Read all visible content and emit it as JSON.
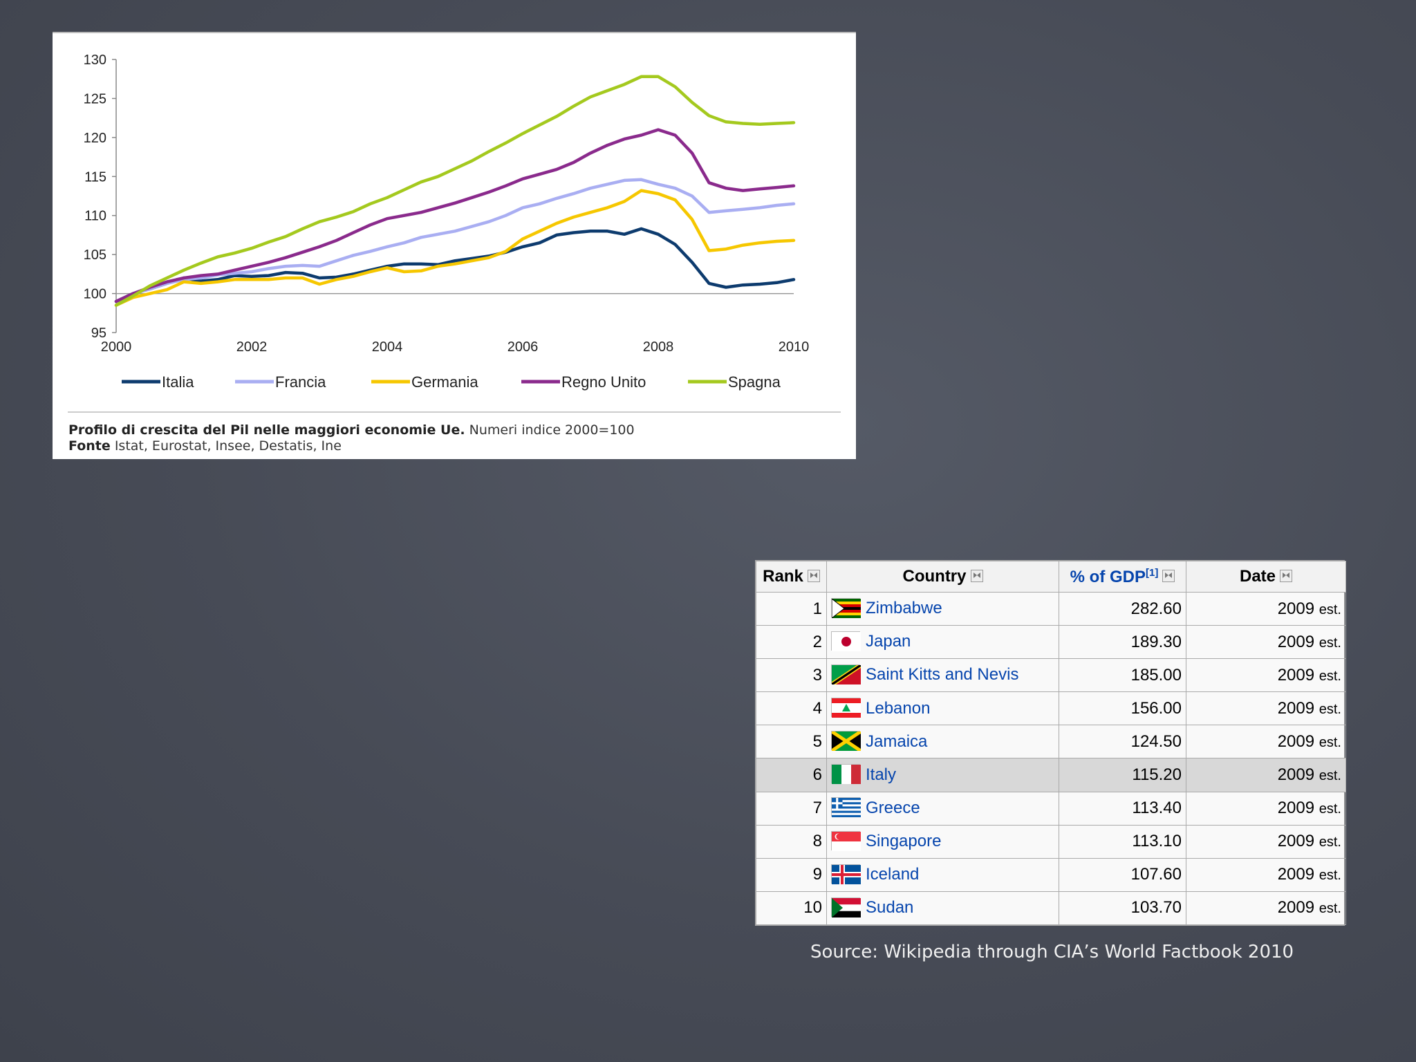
{
  "chart_data": {
    "type": "line",
    "x": [
      2000,
      2000.25,
      2000.5,
      2000.75,
      2001,
      2001.25,
      2001.5,
      2001.75,
      2002,
      2002.25,
      2002.5,
      2002.75,
      2003,
      2003.25,
      2003.5,
      2003.75,
      2004,
      2004.25,
      2004.5,
      2004.75,
      2005,
      2005.25,
      2005.5,
      2005.75,
      2006,
      2006.25,
      2006.5,
      2006.75,
      2007,
      2007.25,
      2007.5,
      2007.75,
      2008,
      2008.25,
      2008.5,
      2008.75,
      2009,
      2009.25,
      2009.5,
      2009.75,
      2010
    ],
    "series": [
      {
        "name": "Italia",
        "color": "#0d3b6e",
        "values": [
          99.0,
          100.0,
          100.6,
          101.3,
          102.0,
          101.6,
          101.8,
          102.3,
          102.2,
          102.3,
          102.7,
          102.6,
          102.0,
          102.1,
          102.5,
          103.0,
          103.5,
          103.8,
          103.8,
          103.7,
          104.2,
          104.5,
          104.8,
          105.3,
          106.0,
          106.5,
          107.5,
          107.8,
          108.0,
          108.0,
          107.6,
          108.3,
          107.6,
          106.3,
          104.0,
          101.3,
          100.8,
          101.1,
          101.2,
          101.4,
          101.8
        ]
      },
      {
        "name": "Francia",
        "color": "#a9aef2",
        "values": [
          99.0,
          100.0,
          100.6,
          101.3,
          101.8,
          102.0,
          102.4,
          102.6,
          102.8,
          103.2,
          103.5,
          103.6,
          103.5,
          104.2,
          104.9,
          105.4,
          106.0,
          106.5,
          107.2,
          107.6,
          108.0,
          108.6,
          109.2,
          110.0,
          111.0,
          111.5,
          112.2,
          112.8,
          113.5,
          114.0,
          114.5,
          114.6,
          114.0,
          113.5,
          112.5,
          110.4,
          110.6,
          110.8,
          111.0,
          111.3,
          111.5
        ]
      },
      {
        "name": "Germania",
        "color": "#f6c700",
        "values": [
          98.5,
          99.5,
          100.0,
          100.5,
          101.5,
          101.3,
          101.5,
          101.8,
          101.8,
          101.8,
          102.0,
          102.0,
          101.2,
          101.8,
          102.2,
          102.8,
          103.3,
          102.8,
          102.9,
          103.5,
          103.8,
          104.2,
          104.6,
          105.4,
          107.0,
          108.0,
          109.0,
          109.8,
          110.4,
          111.0,
          111.8,
          113.2,
          112.8,
          112.0,
          109.5,
          105.5,
          105.7,
          106.2,
          106.5,
          106.7,
          106.8
        ]
      },
      {
        "name": "Regno Unito",
        "color": "#8a2a8c",
        "values": [
          99.0,
          100.0,
          100.8,
          101.5,
          102.0,
          102.3,
          102.5,
          103.0,
          103.5,
          104.0,
          104.6,
          105.3,
          106.0,
          106.8,
          107.8,
          108.8,
          109.6,
          110.0,
          110.4,
          111.0,
          111.6,
          112.3,
          113.0,
          113.8,
          114.7,
          115.3,
          115.9,
          116.8,
          118.0,
          119.0,
          119.8,
          120.3,
          121.0,
          120.3,
          118.0,
          114.2,
          113.5,
          113.2,
          113.4,
          113.6,
          113.8
        ]
      },
      {
        "name": "Spagna",
        "color": "#a4c91e",
        "values": [
          98.5,
          99.7,
          101.0,
          102.0,
          103.0,
          103.9,
          104.7,
          105.2,
          105.8,
          106.6,
          107.3,
          108.3,
          109.2,
          109.8,
          110.5,
          111.5,
          112.3,
          113.3,
          114.3,
          115.0,
          116.0,
          117.0,
          118.2,
          119.3,
          120.5,
          121.6,
          122.7,
          124.0,
          125.2,
          126.0,
          126.8,
          127.8,
          127.8,
          126.5,
          124.5,
          122.8,
          122.0,
          121.8,
          121.7,
          121.8,
          121.9
        ]
      }
    ],
    "xticks": [
      "2000",
      "2002",
      "2004",
      "2006",
      "2008",
      "2010"
    ],
    "yticks": [
      "95",
      "100",
      "105",
      "110",
      "115",
      "120",
      "125",
      "130"
    ],
    "xlim": [
      2000,
      2010
    ],
    "ylim": [
      95,
      130
    ],
    "baseline": 100,
    "legend_position": "bottom",
    "caption_bold": "Profilo di crescita del Pil nelle maggiori economie Ue.",
    "caption_rest": "Numeri indice 2000=100",
    "source_bold": "Fonte",
    "source_rest": "Istat, Eurostat, Insee, Destatis, Ine"
  },
  "table": {
    "headers": {
      "rank": "Rank",
      "country": "Country",
      "gdp": "% of GDP",
      "gdp_ref": "[1]",
      "date": "Date"
    },
    "rows": [
      {
        "rank": "1",
        "country": "Zimbabwe",
        "gdp": "282.60",
        "year": "2009",
        "est": "est.",
        "flag": "zimbabwe"
      },
      {
        "rank": "2",
        "country": "Japan",
        "gdp": "189.30",
        "year": "2009",
        "est": "est.",
        "flag": "japan"
      },
      {
        "rank": "3",
        "country": "Saint Kitts and Nevis",
        "gdp": "185.00",
        "year": "2009",
        "est": "est.",
        "flag": "saint-kitts"
      },
      {
        "rank": "4",
        "country": "Lebanon",
        "gdp": "156.00",
        "year": "2009",
        "est": "est.",
        "flag": "lebanon"
      },
      {
        "rank": "5",
        "country": "Jamaica",
        "gdp": "124.50",
        "year": "2009",
        "est": "est.",
        "flag": "jamaica"
      },
      {
        "rank": "6",
        "country": "Italy",
        "gdp": "115.20",
        "year": "2009",
        "est": "est.",
        "flag": "italy",
        "highlight": true
      },
      {
        "rank": "7",
        "country": "Greece",
        "gdp": "113.40",
        "year": "2009",
        "est": "est.",
        "flag": "greece"
      },
      {
        "rank": "8",
        "country": "Singapore",
        "gdp": "113.10",
        "year": "2009",
        "est": "est.",
        "flag": "singapore"
      },
      {
        "rank": "9",
        "country": "Iceland",
        "gdp": "107.60",
        "year": "2009",
        "est": "est.",
        "flag": "iceland"
      },
      {
        "rank": "10",
        "country": "Sudan",
        "gdp": "103.70",
        "year": "2009",
        "est": "est.",
        "flag": "sudan"
      }
    ]
  },
  "source_text": "Source: Wikipedia through CIA’s World Factbook 2010",
  "colors": {
    "link": "#0645ad",
    "highlight_row": "#d8d8d8",
    "background": "#4a4f5b"
  }
}
